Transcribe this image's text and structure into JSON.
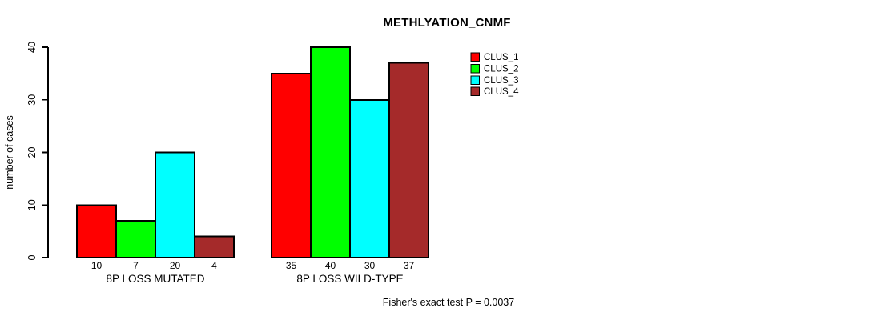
{
  "chart_data": {
    "type": "bar",
    "title": "METHLYATION_CNMF",
    "ylabel": "number of cases",
    "xlabel": "",
    "ylim": [
      0,
      40
    ],
    "yticks": [
      0,
      10,
      20,
      30,
      40
    ],
    "grid": false,
    "categories": [
      "8P LOSS MUTATED",
      "8P LOSS WILD-TYPE"
    ],
    "series": [
      {
        "name": "CLUS_1",
        "color": "#ff0000",
        "values": [
          10,
          35
        ]
      },
      {
        "name": "CLUS_2",
        "color": "#00ff00",
        "values": [
          7,
          40
        ]
      },
      {
        "name": "CLUS_3",
        "color": "#00ffff",
        "values": [
          20,
          30
        ]
      },
      {
        "name": "CLUS_4",
        "color": "#a52a2a",
        "values": [
          4,
          37
        ]
      }
    ],
    "bar_value_labels_shown": true,
    "legend": {
      "position": "top-right",
      "entries": [
        "CLUS_1",
        "CLUS_2",
        "CLUS_3",
        "CLUS_4"
      ]
    },
    "annotation": "Fisher's exact test P = 0.0037",
    "axis_color": "#000000",
    "bar_border_color": "#000000",
    "background": "#ffffff"
  }
}
